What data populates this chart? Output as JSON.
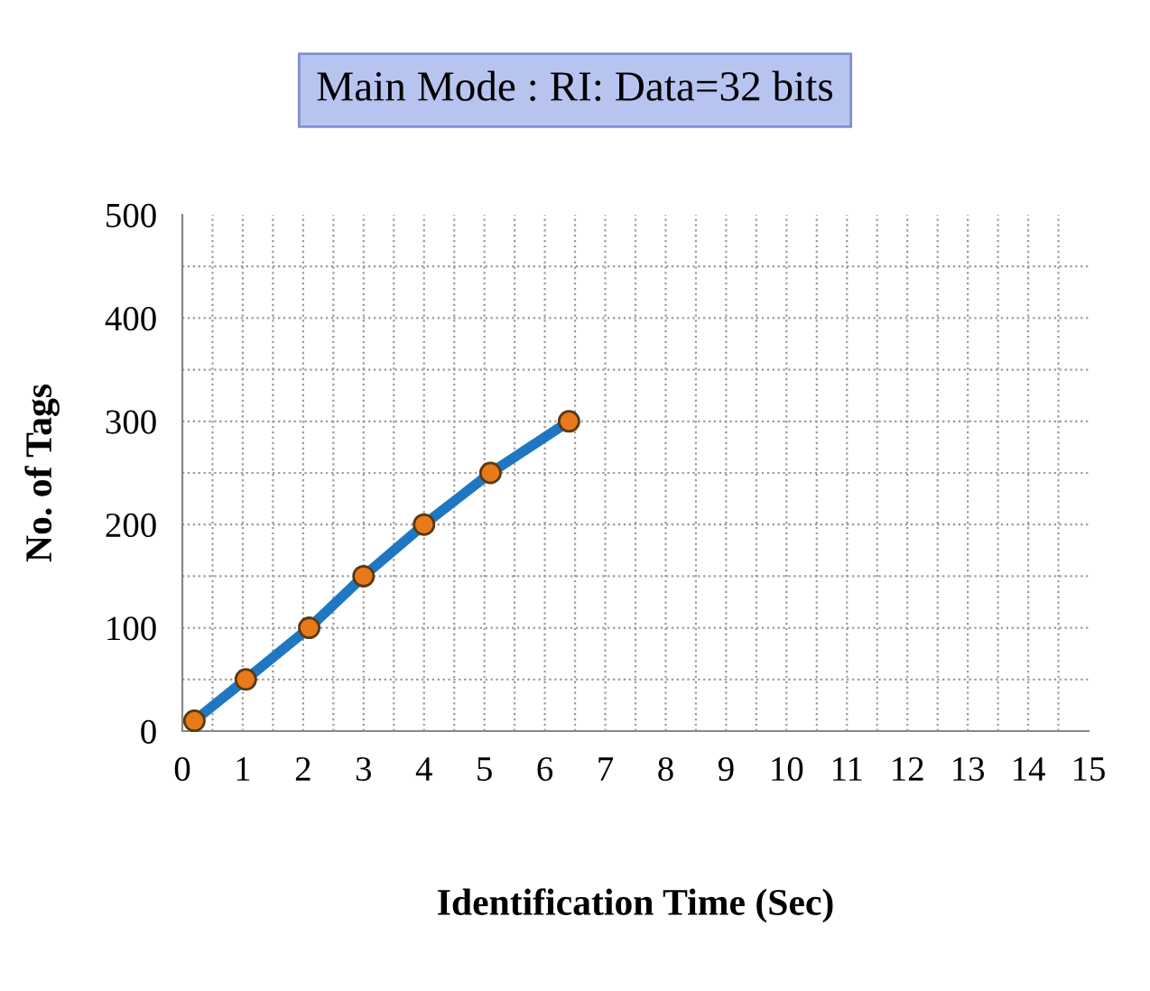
{
  "chart_data": {
    "type": "line",
    "title": "Main Mode : RI: Data=32 bits",
    "xlabel": "Identification Time (Sec)",
    "ylabel": "No. of Tags",
    "series": [
      {
        "color": "#1f77c4",
        "x": [
          0.2,
          1.05,
          2.1,
          3.0,
          4.0,
          5.1,
          6.4
        ],
        "values": [
          10,
          50,
          100,
          150,
          200,
          250,
          300
        ]
      }
    ],
    "xlim": [
      0,
      15
    ],
    "xticks": [
      0,
      1,
      2,
      3,
      4,
      5,
      6,
      7,
      8,
      9,
      10,
      11,
      12,
      13,
      14,
      15
    ],
    "ylim": [
      0,
      500
    ],
    "yticks": [
      0,
      100,
      200,
      300,
      400,
      500
    ],
    "grid": true,
    "marker": "circle",
    "line_style": "solid",
    "legend": false
  }
}
